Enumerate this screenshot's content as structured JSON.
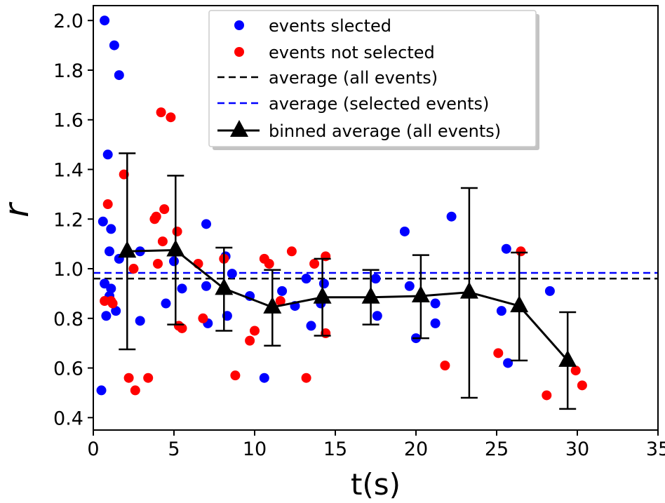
{
  "chart_data": {
    "type": "scatter",
    "xlabel": "t(s)",
    "ylabel": "r",
    "xlim": [
      0,
      35
    ],
    "ylim": [
      0.35,
      2.06
    ],
    "x_ticks": [
      0,
      5,
      10,
      15,
      20,
      25,
      30,
      35
    ],
    "y_ticks": [
      0.4,
      0.6,
      0.8,
      1.0,
      1.2,
      1.4,
      1.6,
      1.8,
      2.0
    ],
    "x_tick_labels": [
      "0",
      "5",
      "10",
      "15",
      "20",
      "25",
      "30",
      "35"
    ],
    "y_tick_labels": [
      "0.4",
      "0.6",
      "0.8",
      "1.0",
      "1.2",
      "1.4",
      "1.6",
      "1.8",
      "2.0"
    ],
    "grid": false,
    "legend_position": "top-center",
    "legend": [
      {
        "label": "events slected",
        "kind": "dot",
        "color": "#0000ff"
      },
      {
        "label": "events not selected",
        "kind": "dot",
        "color": "#ff0000"
      },
      {
        "label": "average (all events)",
        "kind": "dashed",
        "color": "#000000"
      },
      {
        "label": "average (selected events)",
        "kind": "dashed",
        "color": "#0000ff"
      },
      {
        "label": "binned average (all events)",
        "kind": "line-triangle",
        "color": "#000000"
      }
    ],
    "series": [
      {
        "name": "events slected",
        "color": "#0000ff",
        "points": [
          [
            0.5,
            0.51
          ],
          [
            0.6,
            1.19
          ],
          [
            0.7,
            2.0
          ],
          [
            0.7,
            0.94
          ],
          [
            0.8,
            0.81
          ],
          [
            0.9,
            1.46
          ],
          [
            1.0,
            0.89
          ],
          [
            1.0,
            1.07
          ],
          [
            1.1,
            1.16
          ],
          [
            1.1,
            0.92
          ],
          [
            1.3,
            1.9
          ],
          [
            1.4,
            0.83
          ],
          [
            1.6,
            1.78
          ],
          [
            1.6,
            1.04
          ],
          [
            2.9,
            1.07
          ],
          [
            2.9,
            0.79
          ],
          [
            4.5,
            0.86
          ],
          [
            5.0,
            1.03
          ],
          [
            5.5,
            0.92
          ],
          [
            7.0,
            0.93
          ],
          [
            7.0,
            1.18
          ],
          [
            7.1,
            0.78
          ],
          [
            8.2,
            1.05
          ],
          [
            8.3,
            0.81
          ],
          [
            8.6,
            0.98
          ],
          [
            9.7,
            0.89
          ],
          [
            10.6,
            0.56
          ],
          [
            11.7,
            0.91
          ],
          [
            12.5,
            0.85
          ],
          [
            13.2,
            0.96
          ],
          [
            13.5,
            0.77
          ],
          [
            14.1,
            0.86
          ],
          [
            14.3,
            0.94
          ],
          [
            17.5,
            0.96
          ],
          [
            17.6,
            0.81
          ],
          [
            19.3,
            1.15
          ],
          [
            19.6,
            0.93
          ],
          [
            20.0,
            0.72
          ],
          [
            21.2,
            0.86
          ],
          [
            21.2,
            0.78
          ],
          [
            22.2,
            1.21
          ],
          [
            25.3,
            0.83
          ],
          [
            25.6,
            1.08
          ],
          [
            25.7,
            0.62
          ],
          [
            28.3,
            0.91
          ]
        ]
      },
      {
        "name": "events not selected",
        "color": "#ff0000",
        "points": [
          [
            0.7,
            0.87
          ],
          [
            0.9,
            1.26
          ],
          [
            1.1,
            0.87
          ],
          [
            1.2,
            0.86
          ],
          [
            1.9,
            1.38
          ],
          [
            2.2,
            0.56
          ],
          [
            2.5,
            1.0
          ],
          [
            2.6,
            0.51
          ],
          [
            3.4,
            0.56
          ],
          [
            3.8,
            1.2
          ],
          [
            3.9,
            1.21
          ],
          [
            4.0,
            1.02
          ],
          [
            4.2,
            1.63
          ],
          [
            4.3,
            1.11
          ],
          [
            4.4,
            1.24
          ],
          [
            4.8,
            1.61
          ],
          [
            5.2,
            1.15
          ],
          [
            5.3,
            0.77
          ],
          [
            5.5,
            0.76
          ],
          [
            6.5,
            1.02
          ],
          [
            6.8,
            0.8
          ],
          [
            8.1,
            1.04
          ],
          [
            8.8,
            0.57
          ],
          [
            9.7,
            0.71
          ],
          [
            10.0,
            0.75
          ],
          [
            10.6,
            1.04
          ],
          [
            10.9,
            1.02
          ],
          [
            11.6,
            0.87
          ],
          [
            12.3,
            1.07
          ],
          [
            13.2,
            0.56
          ],
          [
            13.7,
            1.02
          ],
          [
            14.4,
            1.05
          ],
          [
            14.4,
            0.74
          ],
          [
            21.8,
            0.61
          ],
          [
            25.1,
            0.66
          ],
          [
            26.5,
            1.07
          ],
          [
            28.1,
            0.49
          ],
          [
            29.9,
            0.59
          ],
          [
            30.3,
            0.53
          ]
        ]
      }
    ],
    "average_all": 0.96,
    "average_selected": 0.983,
    "binned_average": {
      "name": "binned average (all events)",
      "color": "#000000",
      "points": [
        {
          "x": 2.1,
          "y": 1.07,
          "err_low": 0.675,
          "err_high": 1.465
        },
        {
          "x": 5.1,
          "y": 1.075,
          "err_low": 0.775,
          "err_high": 1.375
        },
        {
          "x": 8.1,
          "y": 0.92,
          "err_low": 0.75,
          "err_high": 1.085
        },
        {
          "x": 11.1,
          "y": 0.845,
          "err_low": 0.69,
          "err_high": 0.995
        },
        {
          "x": 14.2,
          "y": 0.885,
          "err_low": 0.73,
          "err_high": 1.04
        },
        {
          "x": 17.2,
          "y": 0.885,
          "err_low": 0.775,
          "err_high": 0.995
        },
        {
          "x": 20.3,
          "y": 0.89,
          "err_low": 0.72,
          "err_high": 1.055
        },
        {
          "x": 23.3,
          "y": 0.905,
          "err_low": 0.48,
          "err_high": 1.325
        },
        {
          "x": 26.4,
          "y": 0.85,
          "err_low": 0.63,
          "err_high": 1.065
        },
        {
          "x": 29.4,
          "y": 0.63,
          "err_low": 0.435,
          "err_high": 0.825
        }
      ]
    }
  }
}
